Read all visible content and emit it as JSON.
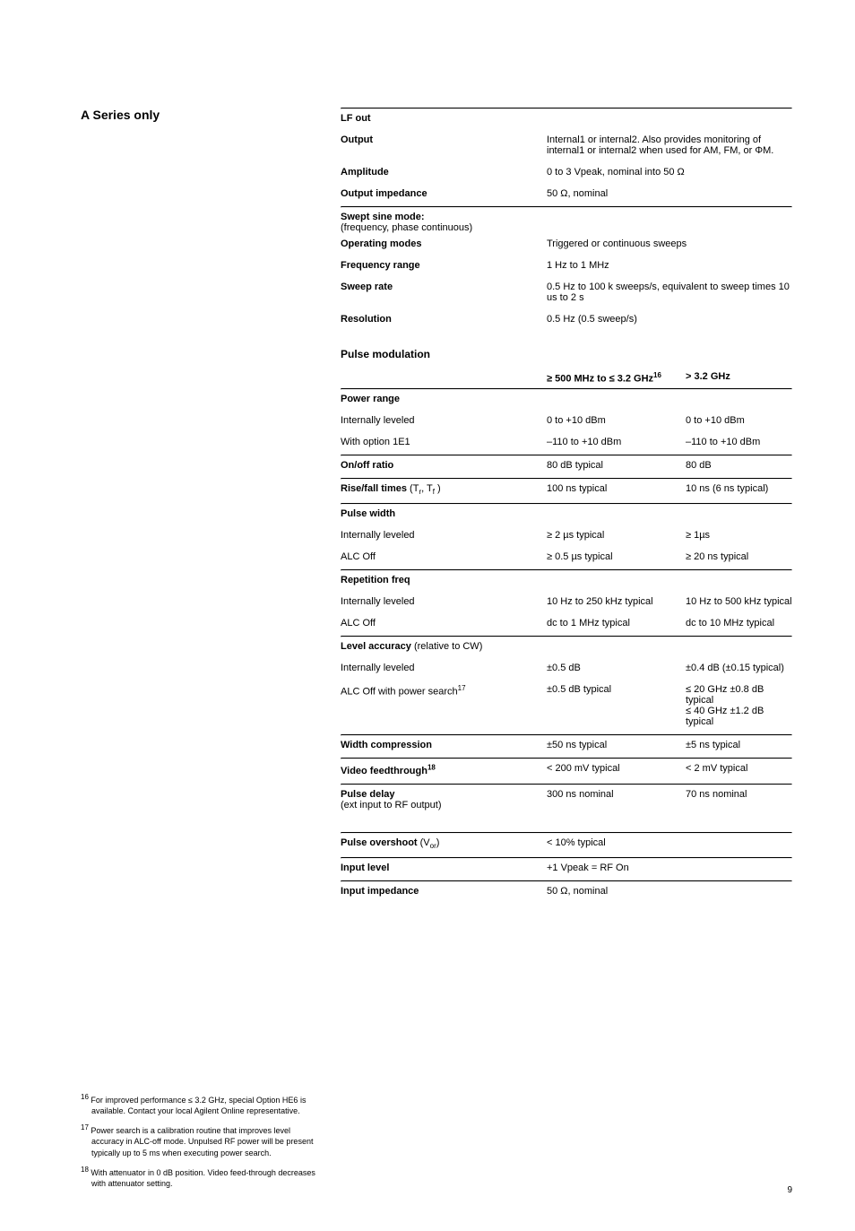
{
  "leftTitle": "A Series only",
  "lfOut": {
    "heading": "LF out",
    "rows": [
      {
        "label": "Output",
        "value": "Internal1 or internal2. Also provides monitoring of internal1 or internal2 when used for AM, FM, or ΦM."
      },
      {
        "label": "Amplitude",
        "value": "0 to 3 Vpeak,  nominal into 50 Ω"
      },
      {
        "label": "Output impedance",
        "value": "50 Ω, nominal"
      }
    ]
  },
  "sweptSine": {
    "heading": "Swept sine mode:",
    "sub": "(frequency, phase continuous)",
    "rows": [
      {
        "label": "Operating modes",
        "value": "Triggered or continuous sweeps"
      },
      {
        "label": "Frequency range",
        "value": "1 Hz to 1 MHz"
      },
      {
        "label": "Sweep rate",
        "value": "0.5 Hz to 100 k sweeps/s, equivalent to sweep times 10 us to 2 s"
      },
      {
        "label": "Resolution",
        "value": "0.5 Hz (0.5 sweep/s)"
      }
    ]
  },
  "pulse": {
    "title": "Pulse modulation",
    "colA": "≥ 500 MHz to ≤ 3.2 GHz",
    "colASup": "16",
    "colB": "> 3.2 GHz",
    "groups": [
      {
        "rule": true,
        "heading": "Power range",
        "rows": [
          {
            "label": "Internally leveled",
            "a": "0 to +10 dBm",
            "b": "0 to +10 dBm"
          },
          {
            "label": "With option 1E1",
            "a": "–110 to +10 dBm",
            "b": "–110 to +10 dBm"
          }
        ]
      },
      {
        "rule": true,
        "rows": [
          {
            "label": "On/off ratio",
            "bold": true,
            "a": "80 dB typical",
            "b": "80 dB"
          }
        ]
      },
      {
        "rule": true,
        "rows": [
          {
            "labelHtml": "risefall",
            "bold": true,
            "a": "100 ns typical",
            "b": "10 ns (6 ns typical)"
          }
        ]
      },
      {
        "rule": true,
        "heading": "Pulse width",
        "rows": [
          {
            "label": "Internally leveled",
            "a": "≥ 2 µs typical",
            "b": "≥ 1µs"
          },
          {
            "label": "ALC Off",
            "a": "≥ 0.5 µs typical",
            "b": "≥ 20 ns typical"
          }
        ]
      },
      {
        "rule": true,
        "heading": "Repetition freq",
        "rows": [
          {
            "label": "Internally leveled",
            "a": "10 Hz to 250 kHz  typical",
            "b": "10 Hz to 500 kHz typical"
          },
          {
            "label": "ALC Off",
            "a": "dc to 1 MHz typical",
            "b": "dc to 10 MHz typical"
          }
        ]
      },
      {
        "rule": true,
        "headingHtml": "levelacc",
        "rows": [
          {
            "label": "Internally leveled",
            "a": "±0.5 dB",
            "b": "±0.4 dB (±0.15 typical)"
          },
          {
            "labelHtml": "alcpower",
            "a": "±0.5 dB typical",
            "b": "≤ 20 GHz ±0.8 dB typical\n≤ 40 GHz ±1.2 dB typical"
          }
        ]
      },
      {
        "rule": true,
        "rows": [
          {
            "label": "Width compression",
            "bold": true,
            "a": "±50 ns typical",
            "b": "±5 ns typical"
          }
        ]
      },
      {
        "rule": true,
        "rows": [
          {
            "labelHtml": "videofeed",
            "bold": true,
            "a": "< 200 mV typical",
            "b": "< 2 mV typical"
          }
        ]
      },
      {
        "rule": true,
        "headingHtml": "pulsedelay",
        "rows": [
          {
            "label": "",
            "a": "300 ns nominal",
            "b": "70 ns nominal"
          }
        ]
      }
    ],
    "tail": [
      {
        "rule": true,
        "labelHtml": "overshoot",
        "value": "< 10% typical"
      },
      {
        "rule": true,
        "label": "Input level",
        "value": "+1 Vpeak = RF On"
      },
      {
        "rule": true,
        "label": "Input impedance",
        "value": "50 Ω, nominal"
      }
    ]
  },
  "footnotes": [
    {
      "num": "16",
      "text": "For improved performance ≤ 3.2 GHz, special Option HE6 is available. Contact your local Agilent Online representative."
    },
    {
      "num": "17",
      "text": "Power search is a calibration routine that improves level accuracy in ALC-off mode. Unpulsed RF power will be present typically up to 5 ms when executing power search."
    },
    {
      "num": "18",
      "text": "With attenuator in 0 dB position. Video feed-through decreases with attenuator setting."
    }
  ],
  "pageNumber": "9",
  "specialLabels": {
    "risefall": "Rise/fall times",
    "risefallSub": "(T<sub>r</sub>, T<sub>f</sub> )",
    "levelacc": "Level accuracy",
    "levelaccSub": "(relative to CW)",
    "alcpower": "ALC Off with power search",
    "videofeed": "Video feedthrough",
    "pulsedelayHead": "Pulse delay",
    "pulsedelaySub": "(ext input to RF output)",
    "overshoot": "Pulse overshoot",
    "overshootSub": "(V<sub>or</sub>)"
  }
}
